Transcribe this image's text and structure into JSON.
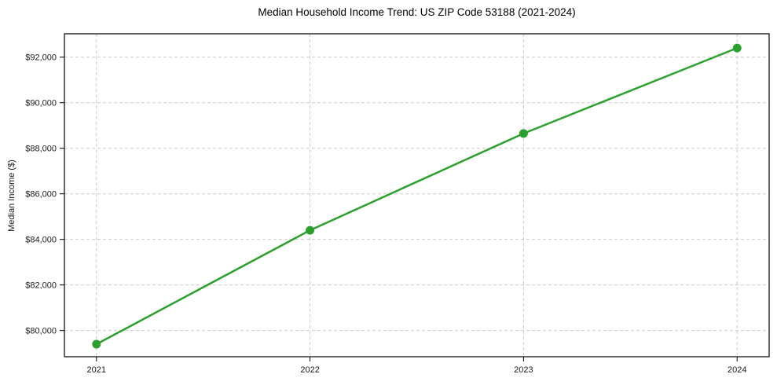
{
  "chart_data": {
    "type": "line",
    "title": "Median Household Income Trend: US ZIP Code 53188 (2021-2024)",
    "xlabel": "",
    "ylabel": "Median Income ($)",
    "x": [
      2021,
      2022,
      2023,
      2024
    ],
    "values": [
      79400,
      84400,
      88650,
      92400
    ],
    "x_tick_labels": [
      "2021",
      "2022",
      "2023",
      "2024"
    ],
    "y_ticks": [
      80000,
      82000,
      84000,
      86000,
      88000,
      90000,
      92000
    ],
    "y_tick_labels": [
      "$80,000",
      "$82,000",
      "$84,000",
      "$86,000",
      "$88,000",
      "$90,000",
      "$92,000"
    ],
    "xlim": [
      2020.85,
      2024.15
    ],
    "ylim": [
      78850,
      93025
    ],
    "grid": true,
    "grid_style": "dashed",
    "grid_color": "#cccccc",
    "legend": false,
    "line_color": "#2ca02c",
    "line_width": 2.5,
    "marker": "circle",
    "marker_radius": 5.5,
    "background": "#ffffff"
  }
}
